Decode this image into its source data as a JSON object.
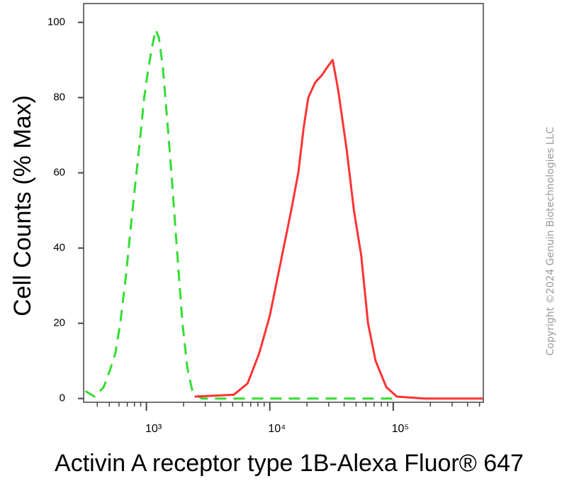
{
  "chart_data": {
    "type": "line",
    "x_label": "Activin A receptor type 1B-Alexa Fluor® 647",
    "y_label": "Cell Counts (% Max)",
    "watermark": "Copyright ©2024 Genuin Biotechnologies LLC",
    "xscale": "log",
    "xlim": [
      310,
      537000
    ],
    "ylim": [
      -1,
      105
    ],
    "xticks": [
      {
        "value": 1000,
        "label": "10³"
      },
      {
        "value": 10000,
        "label": "10⁴"
      },
      {
        "value": 100000,
        "label": "10⁵"
      }
    ],
    "xminorticks": [
      400,
      500,
      600,
      700,
      800,
      900,
      2000,
      3000,
      4000,
      5000,
      6000,
      7000,
      8000,
      9000,
      20000,
      30000,
      40000,
      50000,
      60000,
      70000,
      80000,
      90000,
      200000,
      300000,
      400000,
      500000
    ],
    "yticks": [
      0,
      20,
      40,
      60,
      80,
      100
    ],
    "series": [
      {
        "color": "#33dd33",
        "line_style": "dashed",
        "x": [
          320,
          380,
          450,
          500,
          560,
          614,
          680,
          728,
          800,
          876,
          960,
          1040,
          1120,
          1190,
          1260,
          1360,
          1510,
          1620,
          1720,
          1840,
          1960,
          2150,
          2360,
          2800,
          5000,
          20000,
          100000
        ],
        "values": [
          2,
          0.5,
          3,
          7,
          12,
          20,
          32,
          42,
          55,
          67,
          80,
          88,
          94,
          98,
          96,
          88,
          70,
          57,
          45,
          32,
          20,
          8,
          2,
          0,
          0,
          0,
          0
        ]
      },
      {
        "color": "#ff3333",
        "line_style": "solid",
        "x": [
          2460,
          5100,
          6600,
          8200,
          10000,
          12200,
          14900,
          17000,
          18800,
          20500,
          23300,
          26500,
          29100,
          32300,
          35800,
          42000,
          48000,
          55000,
          62500,
          72000,
          88000,
          107000,
          180000,
          530000
        ],
        "values": [
          0.5,
          1,
          4,
          12,
          22,
          36,
          50,
          60,
          72,
          80,
          84,
          86,
          88,
          90,
          82,
          66,
          50,
          38,
          20,
          10,
          3,
          0.5,
          0,
          0
        ]
      }
    ]
  }
}
